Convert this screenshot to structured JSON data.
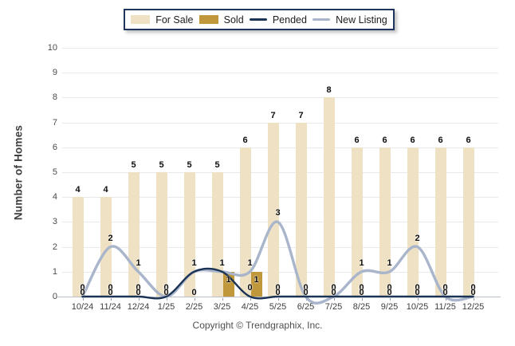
{
  "legend": {
    "items": [
      {
        "label": "For Sale",
        "swatch": "bar",
        "color": "#EFE2C4"
      },
      {
        "label": "Sold",
        "swatch": "bar",
        "color": "#C0973B"
      },
      {
        "label": "Pended",
        "swatch": "line",
        "color": "#1B3354"
      },
      {
        "label": "New Listing",
        "swatch": "line",
        "color": "#A9B5CB"
      }
    ]
  },
  "footer": {
    "copyright": "Copyright © Trendgraphix, Inc."
  },
  "chart_data": {
    "type": "bar",
    "title": "",
    "xlabel": "",
    "ylabel": "Number of Homes",
    "categories": [
      "10/24",
      "11/24",
      "12/24",
      "1/25",
      "2/25",
      "3/25",
      "4/25",
      "5/25",
      "6/25",
      "7/25",
      "8/25",
      "9/25",
      "10/25",
      "11/25",
      "12/25"
    ],
    "series": [
      {
        "name": "For Sale",
        "type": "bar",
        "color": "#EFE2C4",
        "values": [
          4,
          4,
          5,
          5,
          5,
          5,
          6,
          7,
          7,
          8,
          6,
          6,
          6,
          6,
          6
        ]
      },
      {
        "name": "Sold",
        "type": "bar",
        "color": "#C0973B",
        "values": [
          0,
          0,
          0,
          0,
          0,
          1,
          1,
          0,
          0,
          0,
          0,
          0,
          0,
          0,
          0
        ]
      },
      {
        "name": "Pended",
        "type": "line",
        "color": "#1B3354",
        "values": [
          0,
          0,
          0,
          0,
          1,
          1,
          0,
          0,
          0,
          0,
          0,
          0,
          0,
          0,
          0
        ]
      },
      {
        "name": "New Listing",
        "type": "line",
        "color": "#A9B5CB",
        "values": [
          0,
          2,
          1,
          0,
          1,
          1,
          1,
          3,
          0,
          0,
          1,
          1,
          2,
          0,
          0
        ]
      }
    ],
    "ylim": [
      0,
      10
    ],
    "yticks": [
      0,
      1,
      2,
      3,
      4,
      5,
      6,
      7,
      8,
      9,
      10
    ],
    "grid": true,
    "data_labels": true,
    "legend_position": "top"
  }
}
